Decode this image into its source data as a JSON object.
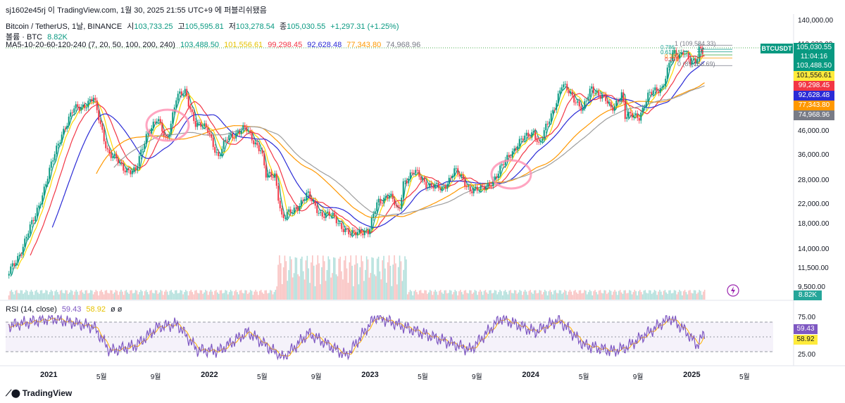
{
  "header": {
    "line1": "sj1602e45rj 이 TradingView.com, 1월 30, 2025 21:55 UTC+9 에 퍼블리쉬됐음",
    "symbol": "Bitcoin / TetherUS, 1날, BINANCE",
    "open_label": "시",
    "open": "103,733.25",
    "high_label": "고",
    "high": "105,595.81",
    "low_label": "저",
    "low": "103,278.54",
    "close_label": "종",
    "close": "105,030.55",
    "change": "+1,297.31 (+1.25%)",
    "volume_label": "볼륨 · BTC",
    "volume": "8.82K",
    "ma_label": "MA5-10-20-60-120-240 (7, 20, 50, 100, 200, 240)",
    "ma_values": [
      "103,488.50",
      "101,556.61",
      "99,298.45",
      "92,628.48",
      "77,343.80",
      "74,968.96"
    ],
    "ma_colors": [
      "#089981",
      "#ffd700",
      "#f23645",
      "#2b2bd6",
      "#ff9800",
      "#9e9e9e"
    ],
    "rsi_label": "RSI (14, close)",
    "rsi": "59.43",
    "rsi_ma": "58.92",
    "rsi_extra": "ø ø"
  },
  "price_tags": {
    "symbol": "BTCUSDT",
    "last": "105,030.55",
    "countdown": "11:04:16",
    "ma": [
      "103,488.50",
      "101,556.61",
      "99,298.45",
      "92,628.48",
      "77,343.80",
      "74,968.96"
    ],
    "volume": "8.82K",
    "rsi": "59.43",
    "rsi_ma": "58.92"
  },
  "fib": {
    "top": "1 (109,584.33)",
    "bottom": "0 (89,256.69)",
    "mid_labels": [
      "0.786",
      "0.618",
      "0.5",
      "0.382",
      "0.236"
    ]
  },
  "chart_data": {
    "type": "line",
    "title": "Bitcoin / TetherUS, 1날, BINANCE",
    "y_scale": "log",
    "y_ticks": [
      "140,000.00",
      "110,000.00",
      "46,000.00",
      "36,000.00",
      "28,000.00",
      "22,000.00",
      "18,000.00",
      "14,000.00",
      "11,500.00",
      "9,500.00"
    ],
    "y_tick_values": [
      140000,
      110000,
      46000,
      36000,
      28000,
      22000,
      18000,
      14000,
      11500,
      9500
    ],
    "ylim": [
      8200,
      150000
    ],
    "x_ticks": [
      "2021",
      "5월",
      "9월",
      "2022",
      "5월",
      "9월",
      "2023",
      "5월",
      "9월",
      "2024",
      "5월",
      "9월",
      "2025",
      "5월"
    ],
    "x_ticks_year": [
      true,
      false,
      false,
      true,
      false,
      false,
      true,
      false,
      false,
      true,
      false,
      false,
      true,
      false
    ],
    "x_tick_dates": [
      "2021-01-01",
      "2021-05-01",
      "2021-09-01",
      "2022-01-01",
      "2022-05-01",
      "2022-09-01",
      "2023-01-01",
      "2023-05-01",
      "2023-09-01",
      "2024-01-01",
      "2024-05-01",
      "2024-09-01",
      "2025-01-01",
      "2025-05-01"
    ],
    "xlim": [
      "2020-09-25",
      "2025-07-05"
    ],
    "price": {
      "x": [
        "2020-10-01",
        "2020-11-01",
        "2020-12-01",
        "2021-01-01",
        "2021-02-01",
        "2021-03-01",
        "2021-04-15",
        "2021-05-19",
        "2021-06-22",
        "2021-07-20",
        "2021-08-15",
        "2021-09-07",
        "2021-09-28",
        "2021-10-20",
        "2021-11-10",
        "2021-12-04",
        "2022-01-01",
        "2022-01-24",
        "2022-02-15",
        "2022-03-28",
        "2022-05-01",
        "2022-05-12",
        "2022-06-01",
        "2022-06-18",
        "2022-07-15",
        "2022-08-14",
        "2022-09-15",
        "2022-10-15",
        "2022-11-09",
        "2022-11-21",
        "2022-12-15",
        "2023-01-01",
        "2023-01-20",
        "2023-02-15",
        "2023-03-10",
        "2023-03-20",
        "2023-04-14",
        "2023-05-15",
        "2023-06-15",
        "2023-07-14",
        "2023-08-17",
        "2023-09-11",
        "2023-10-20",
        "2023-11-15",
        "2023-12-15",
        "2024-01-11",
        "2024-01-23",
        "2024-02-15",
        "2024-03-14",
        "2024-04-15",
        "2024-05-01",
        "2024-05-21",
        "2024-06-15",
        "2024-07-05",
        "2024-07-29",
        "2024-08-05",
        "2024-09-06",
        "2024-09-27",
        "2024-10-29",
        "2024-11-13",
        "2024-11-22",
        "2024-12-05",
        "2024-12-17",
        "2024-12-30",
        "2025-01-13",
        "2025-01-20",
        "2025-01-30"
      ],
      "y": [
        10600,
        13800,
        19000,
        29000,
        45000,
        57000,
        63500,
        37000,
        32000,
        30500,
        46000,
        51500,
        42000,
        64000,
        68500,
        49000,
        47000,
        35000,
        44000,
        47000,
        38000,
        29000,
        30000,
        18800,
        21000,
        24200,
        20000,
        19300,
        17000,
        16000,
        17100,
        16600,
        22500,
        24500,
        20200,
        27800,
        30500,
        27000,
        25500,
        31000,
        26000,
        25200,
        29500,
        36500,
        42000,
        46500,
        39600,
        52000,
        73000,
        63500,
        57000,
        71000,
        66000,
        56500,
        69000,
        53000,
        54000,
        65800,
        72500,
        90000,
        99500,
        98000,
        106500,
        92000,
        90500,
        105500,
        105030
      ]
    },
    "ma_series": [
      {
        "name": "MA 7",
        "color": "#089981",
        "offset": 7,
        "smooth": 1
      },
      {
        "name": "MA 20",
        "color": "#ffd700",
        "offset": 20,
        "smooth": 2
      },
      {
        "name": "MA 50",
        "color": "#f23645",
        "offset": 50,
        "smooth": 3
      },
      {
        "name": "MA 100",
        "color": "#2b2bd6",
        "offset": 100,
        "smooth": 4
      },
      {
        "name": "MA 200",
        "color": "#ff9800",
        "offset": 200,
        "smooth": 6
      },
      {
        "name": "MA 240",
        "color": "#9e9e9e",
        "offset": 240,
        "smooth": 7
      }
    ],
    "volume_note": "volume bars below price (BTC)",
    "rsi": {
      "levels": [
        75,
        25
      ],
      "ticks": [
        "75.00",
        "25.00"
      ],
      "ylim": [
        15,
        90
      ],
      "x": [
        "2020-10-01",
        "2021-01-08",
        "2021-02-20",
        "2021-04-14",
        "2021-05-20",
        "2021-07-20",
        "2021-09-05",
        "2021-10-20",
        "2021-12-04",
        "2022-01-22",
        "2022-03-29",
        "2022-06-18",
        "2022-08-14",
        "2022-11-09",
        "2023-01-14",
        "2023-03-20",
        "2023-06-15",
        "2023-08-17",
        "2023-10-25",
        "2024-01-11",
        "2024-03-05",
        "2024-05-01",
        "2024-07-05",
        "2024-08-05",
        "2024-09-27",
        "2024-11-12",
        "2024-12-17",
        "2025-01-13",
        "2025-01-30"
      ],
      "y": [
        72,
        85,
        78,
        70,
        30,
        40,
        70,
        75,
        32,
        30,
        62,
        18,
        60,
        22,
        88,
        70,
        48,
        32,
        85,
        62,
        82,
        40,
        30,
        36,
        62,
        86,
        64,
        40,
        59.43
      ]
    }
  }
}
